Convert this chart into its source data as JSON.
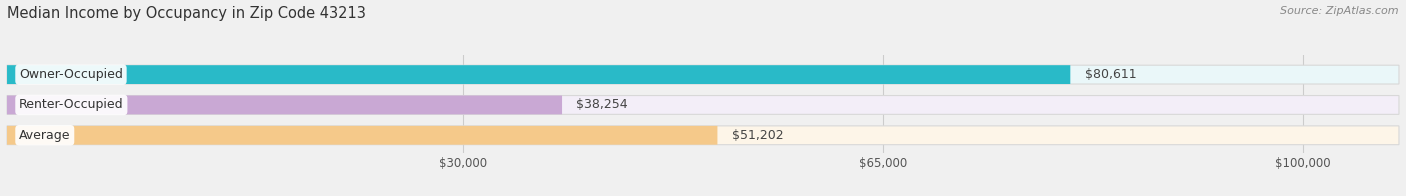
{
  "title": "Median Income by Occupancy in Zip Code 43213",
  "source": "Source: ZipAtlas.com",
  "categories": [
    "Owner-Occupied",
    "Renter-Occupied",
    "Average"
  ],
  "values": [
    80611,
    38254,
    51202
  ],
  "value_labels": [
    "$80,611",
    "$38,254",
    "$51,202"
  ],
  "bar_colors": [
    "#29bac8",
    "#c9a8d4",
    "#f5c98a"
  ],
  "bar_bg_colors": [
    "#eaf7f9",
    "#f3eef8",
    "#fdf5e8"
  ],
  "xlim_min": -8000,
  "xlim_max": 108000,
  "xticks": [
    30000,
    65000,
    100000
  ],
  "xtick_labels": [
    "$30,000",
    "$65,000",
    "$100,000"
  ],
  "title_fontsize": 10.5,
  "source_fontsize": 8,
  "label_fontsize": 9,
  "tick_fontsize": 8.5,
  "background_color": "#f0f0f0",
  "bar_height": 0.62,
  "bar_gap": 0.18
}
